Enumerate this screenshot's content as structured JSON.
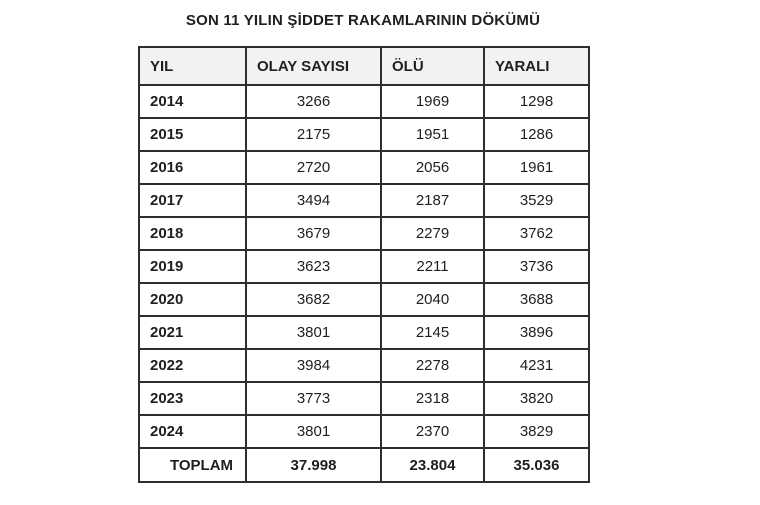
{
  "title": "SON 11 YILIN ŞİDDET RAKAMLARININ DÖKÜMÜ",
  "table": {
    "headers": [
      "YIL",
      "OLAY SAYISI",
      "ÖLÜ",
      "YARALI"
    ],
    "rows": [
      [
        "2014",
        "3266",
        "1969",
        "1298"
      ],
      [
        "2015",
        "2175",
        "1951",
        "1286"
      ],
      [
        "2016",
        "2720",
        "2056",
        "1961"
      ],
      [
        "2017",
        "3494",
        "2187",
        "3529"
      ],
      [
        "2018",
        "3679",
        "2279",
        "3762"
      ],
      [
        "2019",
        "3623",
        "2211",
        "3736"
      ],
      [
        "2020",
        "3682",
        "2040",
        "3688"
      ],
      [
        "2021",
        "3801",
        "2145",
        "3896"
      ],
      [
        "2022",
        "3984",
        "2278",
        "4231"
      ],
      [
        "2023",
        "3773",
        "2318",
        "3820"
      ],
      [
        "2024",
        "3801",
        "2370",
        "3829"
      ]
    ],
    "total_row": [
      "TOPLAM",
      "37.998",
      "23.804",
      "35.036"
    ]
  },
  "chart_data": {
    "type": "table",
    "title": "SON 11 YILIN ŞİDDET RAKAMLARININ DÖKÜMÜ",
    "columns": [
      "YIL",
      "OLAY SAYISI",
      "ÖLÜ",
      "YARALI"
    ],
    "rows": [
      [
        2014,
        3266,
        1969,
        1298
      ],
      [
        2015,
        2175,
        1951,
        1286
      ],
      [
        2016,
        2720,
        2056,
        1961
      ],
      [
        2017,
        3494,
        2187,
        3529
      ],
      [
        2018,
        3679,
        2279,
        3762
      ],
      [
        2019,
        3623,
        2211,
        3736
      ],
      [
        2020,
        3682,
        2040,
        3688
      ],
      [
        2021,
        3801,
        2145,
        3896
      ],
      [
        2022,
        3984,
        2278,
        4231
      ],
      [
        2023,
        3773,
        2318,
        3820
      ],
      [
        2024,
        3801,
        2370,
        3829
      ]
    ],
    "totals": {
      "label": "TOPLAM",
      "olay_sayisi": 37998,
      "olu": 23804,
      "yarali": 35036
    },
    "totals_display": [
      "TOPLAM",
      "37.998",
      "23.804",
      "35.036"
    ]
  },
  "colors": {
    "text": "#1f1f1f",
    "border": "#2e2e2e",
    "header-bg": "#f2f2f2",
    "page-bg": "#ffffff"
  }
}
